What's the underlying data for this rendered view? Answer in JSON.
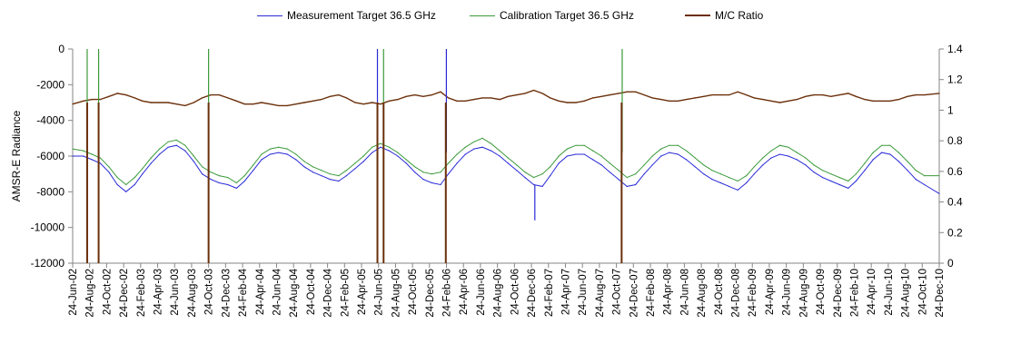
{
  "chart_data": {
    "type": "line",
    "title": "",
    "xlabel": "",
    "ylabel": "AMSR-E Radiance",
    "y2label": "",
    "ylim": [
      -12000,
      0
    ],
    "y2lim": [
      0,
      1.4
    ],
    "yticks": [
      0,
      -2000,
      -4000,
      -6000,
      -8000,
      -10000,
      -12000
    ],
    "y2ticks": [
      1.4,
      1.2,
      1,
      0.8,
      0.6,
      0.4,
      0.2,
      0
    ],
    "xlim": [
      "2002-06-24",
      "2010-12-24"
    ],
    "xtick_labels": [
      "24-Jun-02",
      "24-Aug-02",
      "24-Oct-02",
      "24-Dec-02",
      "24-Feb-03",
      "24-Apr-03",
      "24-Jun-03",
      "24-Aug-03",
      "24-Oct-03",
      "24-Dec-03",
      "24-Feb-04",
      "24-Apr-04",
      "24-Jun-04",
      "24-Aug-04",
      "24-Oct-04",
      "24-Dec-04",
      "24-Feb-05",
      "24-Apr-05",
      "24-Jun-05",
      "24-Aug-05",
      "24-Oct-05",
      "24-Dec-05",
      "24-Feb-06",
      "24-Apr-06",
      "24-Jun-06",
      "24-Aug-06",
      "24-Oct-06",
      "24-Dec-06",
      "24-Feb-07",
      "24-Apr-07",
      "24-Jun-07",
      "24-Aug-07",
      "24-Oct-07",
      "24-Dec-07",
      "24-Feb-08",
      "24-Apr-08",
      "24-Jun-08",
      "24-Aug-08",
      "24-Oct-08",
      "24-Dec-08",
      "24-Feb-09",
      "24-Apr-09",
      "24-Jun-09",
      "24-Aug-09",
      "24-Oct-09",
      "24-Dec-09",
      "24-Feb-10",
      "24-Apr-10",
      "24-Jun-10",
      "24-Aug-10",
      "24-Oct-10",
      "24-Dec-10"
    ],
    "grid": false,
    "legend_position": "top-center",
    "series": [
      {
        "name": "Measurement Target 36.5 GHz",
        "axis": "left",
        "color": "#2a2ad8",
        "x": [
          "2002-06-24",
          "2002-08-01",
          "2002-09-01",
          "2002-10-01",
          "2002-11-01",
          "2002-12-01",
          "2003-01-01",
          "2003-02-01",
          "2003-03-01",
          "2003-04-01",
          "2003-05-01",
          "2003-06-01",
          "2003-07-01",
          "2003-08-01",
          "2003-09-01",
          "2003-10-01",
          "2003-11-01",
          "2003-12-01",
          "2004-01-01",
          "2004-02-01",
          "2004-03-01",
          "2004-04-01",
          "2004-05-01",
          "2004-06-01",
          "2004-07-01",
          "2004-08-01",
          "2004-09-01",
          "2004-10-01",
          "2004-11-01",
          "2004-12-01",
          "2005-01-01",
          "2005-02-01",
          "2005-03-01",
          "2005-04-01",
          "2005-05-01",
          "2005-06-01",
          "2005-07-01",
          "2005-08-01",
          "2005-09-01",
          "2005-10-01",
          "2005-11-01",
          "2005-12-01",
          "2006-01-01",
          "2006-02-01",
          "2006-03-01",
          "2006-04-01",
          "2006-05-01",
          "2006-06-01",
          "2006-07-01",
          "2006-08-01",
          "2006-09-01",
          "2006-10-01",
          "2006-11-01",
          "2006-12-01",
          "2007-01-01",
          "2007-02-01",
          "2007-03-01",
          "2007-04-01",
          "2007-05-01",
          "2007-06-01",
          "2007-07-01",
          "2007-08-01",
          "2007-09-01",
          "2007-10-01",
          "2007-11-01",
          "2007-12-01",
          "2008-01-01",
          "2008-02-01",
          "2008-03-01",
          "2008-04-01",
          "2008-05-01",
          "2008-06-01",
          "2008-07-01",
          "2008-08-01",
          "2008-09-01",
          "2008-10-01",
          "2008-11-01",
          "2008-12-01",
          "2009-01-01",
          "2009-02-01",
          "2009-03-01",
          "2009-04-01",
          "2009-05-01",
          "2009-06-01",
          "2009-07-01",
          "2009-08-01",
          "2009-09-01",
          "2009-10-01",
          "2009-11-01",
          "2009-12-01",
          "2010-01-01",
          "2010-02-01",
          "2010-03-01",
          "2010-04-01",
          "2010-05-01",
          "2010-06-01",
          "2010-07-01",
          "2010-08-01",
          "2010-09-01",
          "2010-10-01",
          "2010-11-01",
          "2010-12-24"
        ],
        "y": [
          -6000,
          -6000,
          -6200,
          -6400,
          -6900,
          -7600,
          -8000,
          -7600,
          -7000,
          -6400,
          -5900,
          -5500,
          -5400,
          -5700,
          -6300,
          -7000,
          -7300,
          -7500,
          -7600,
          -7800,
          -7400,
          -6800,
          -6200,
          -5900,
          -5800,
          -5900,
          -6200,
          -6600,
          -6900,
          -7100,
          -7300,
          -7400,
          -7100,
          -6700,
          -6300,
          -5800,
          -5500,
          -5700,
          -6000,
          -6400,
          -6900,
          -7300,
          -7500,
          -7600,
          -7000,
          -6400,
          -5900,
          -5600,
          -5500,
          -5700,
          -6000,
          -6400,
          -6800,
          -7200,
          -7600,
          -7700,
          -7100,
          -6400,
          -6000,
          -5900,
          -5900,
          -6200,
          -6500,
          -6900,
          -7300,
          -7700,
          -7600,
          -7000,
          -6500,
          -6000,
          -5800,
          -5900,
          -6200,
          -6600,
          -7000,
          -7300,
          -7500,
          -7700,
          -7900,
          -7500,
          -7000,
          -6500,
          -6100,
          -5900,
          -6000,
          -6200,
          -6500,
          -6900,
          -7200,
          -7400,
          -7600,
          -7800,
          -7400,
          -6800,
          -6200,
          -5800,
          -5900,
          -6300,
          -6800,
          -7300,
          -7600,
          -8100
        ]
      },
      {
        "name": "Calibration Target 36.5 GHz",
        "axis": "left",
        "color": "#3a9a3a",
        "x": [
          "2002-06-24",
          "2002-08-01",
          "2002-09-01",
          "2002-10-01",
          "2002-11-01",
          "2002-12-01",
          "2003-01-01",
          "2003-02-01",
          "2003-03-01",
          "2003-04-01",
          "2003-05-01",
          "2003-06-01",
          "2003-07-01",
          "2003-08-01",
          "2003-09-01",
          "2003-10-01",
          "2003-11-01",
          "2003-12-01",
          "2004-01-01",
          "2004-02-01",
          "2004-03-01",
          "2004-04-01",
          "2004-05-01",
          "2004-06-01",
          "2004-07-01",
          "2004-08-01",
          "2004-09-01",
          "2004-10-01",
          "2004-11-01",
          "2004-12-01",
          "2005-01-01",
          "2005-02-01",
          "2005-03-01",
          "2005-04-01",
          "2005-05-01",
          "2005-06-01",
          "2005-07-01",
          "2005-08-01",
          "2005-09-01",
          "2005-10-01",
          "2005-11-01",
          "2005-12-01",
          "2006-01-01",
          "2006-02-01",
          "2006-03-01",
          "2006-04-01",
          "2006-05-01",
          "2006-06-01",
          "2006-07-01",
          "2006-08-01",
          "2006-09-01",
          "2006-10-01",
          "2006-11-01",
          "2006-12-01",
          "2007-01-01",
          "2007-02-01",
          "2007-03-01",
          "2007-04-01",
          "2007-05-01",
          "2007-06-01",
          "2007-07-01",
          "2007-08-01",
          "2007-09-01",
          "2007-10-01",
          "2007-11-01",
          "2007-12-01",
          "2008-01-01",
          "2008-02-01",
          "2008-03-01",
          "2008-04-01",
          "2008-05-01",
          "2008-06-01",
          "2008-07-01",
          "2008-08-01",
          "2008-09-01",
          "2008-10-01",
          "2008-11-01",
          "2008-12-01",
          "2009-01-01",
          "2009-02-01",
          "2009-03-01",
          "2009-04-01",
          "2009-05-01",
          "2009-06-01",
          "2009-07-01",
          "2009-08-01",
          "2009-09-01",
          "2009-10-01",
          "2009-11-01",
          "2009-12-01",
          "2010-01-01",
          "2010-02-01",
          "2010-03-01",
          "2010-04-01",
          "2010-05-01",
          "2010-06-01",
          "2010-07-01",
          "2010-08-01",
          "2010-09-01",
          "2010-10-01",
          "2010-11-01",
          "2010-12-24"
        ],
        "y": [
          -5600,
          -5700,
          -5900,
          -6100,
          -6600,
          -7200,
          -7600,
          -7200,
          -6700,
          -6100,
          -5600,
          -5200,
          -5100,
          -5400,
          -6000,
          -6600,
          -6900,
          -7100,
          -7200,
          -7500,
          -7100,
          -6500,
          -5900,
          -5600,
          -5500,
          -5600,
          -5900,
          -6300,
          -6600,
          -6800,
          -7000,
          -7100,
          -6800,
          -6400,
          -6000,
          -5500,
          -5300,
          -5500,
          -5800,
          -6200,
          -6600,
          -6900,
          -7000,
          -6900,
          -6400,
          -5900,
          -5500,
          -5200,
          -5000,
          -5300,
          -5700,
          -6100,
          -6500,
          -6900,
          -7200,
          -7000,
          -6600,
          -6000,
          -5600,
          -5400,
          -5400,
          -5700,
          -6000,
          -6400,
          -6800,
          -7200,
          -7000,
          -6500,
          -6000,
          -5600,
          -5400,
          -5400,
          -5700,
          -6100,
          -6500,
          -6800,
          -7000,
          -7200,
          -7400,
          -7100,
          -6600,
          -6100,
          -5700,
          -5400,
          -5500,
          -5800,
          -6100,
          -6500,
          -6800,
          -7000,
          -7200,
          -7400,
          -7000,
          -6400,
          -5800,
          -5400,
          -5400,
          -5800,
          -6300,
          -6800,
          -7100,
          -7100
        ]
      },
      {
        "name": "M/C Ratio",
        "axis": "right",
        "color": "#6b2f0a",
        "x": [
          "2002-06-24",
          "2002-08-01",
          "2002-09-01",
          "2002-10-01",
          "2002-11-01",
          "2002-12-01",
          "2003-01-01",
          "2003-02-01",
          "2003-03-01",
          "2003-04-01",
          "2003-05-01",
          "2003-06-01",
          "2003-07-01",
          "2003-08-01",
          "2003-09-01",
          "2003-10-01",
          "2003-11-01",
          "2003-12-01",
          "2004-01-01",
          "2004-02-01",
          "2004-03-01",
          "2004-04-01",
          "2004-05-01",
          "2004-06-01",
          "2004-07-01",
          "2004-08-01",
          "2004-09-01",
          "2004-10-01",
          "2004-11-01",
          "2004-12-01",
          "2005-01-01",
          "2005-02-01",
          "2005-03-01",
          "2005-04-01",
          "2005-05-01",
          "2005-06-01",
          "2005-07-01",
          "2005-08-01",
          "2005-09-01",
          "2005-10-01",
          "2005-11-01",
          "2005-12-01",
          "2006-01-01",
          "2006-02-01",
          "2006-03-01",
          "2006-04-01",
          "2006-05-01",
          "2006-06-01",
          "2006-07-01",
          "2006-08-01",
          "2006-09-01",
          "2006-10-01",
          "2006-11-01",
          "2006-12-01",
          "2007-01-01",
          "2007-02-01",
          "2007-03-01",
          "2007-04-01",
          "2007-05-01",
          "2007-06-01",
          "2007-07-01",
          "2007-08-01",
          "2007-09-01",
          "2007-10-01",
          "2007-11-01",
          "2007-12-01",
          "2008-01-01",
          "2008-02-01",
          "2008-03-01",
          "2008-04-01",
          "2008-05-01",
          "2008-06-01",
          "2008-07-01",
          "2008-08-01",
          "2008-09-01",
          "2008-10-01",
          "2008-11-01",
          "2008-12-01",
          "2009-01-01",
          "2009-02-01",
          "2009-03-01",
          "2009-04-01",
          "2009-05-01",
          "2009-06-01",
          "2009-07-01",
          "2009-08-01",
          "2009-09-01",
          "2009-10-01",
          "2009-11-01",
          "2009-12-01",
          "2010-01-01",
          "2010-02-01",
          "2010-03-01",
          "2010-04-01",
          "2010-05-01",
          "2010-06-01",
          "2010-07-01",
          "2010-08-01",
          "2010-09-01",
          "2010-10-01",
          "2010-11-01",
          "2010-12-24"
        ],
        "y": [
          1.04,
          1.06,
          1.07,
          1.07,
          1.09,
          1.11,
          1.1,
          1.08,
          1.06,
          1.05,
          1.05,
          1.05,
          1.04,
          1.03,
          1.05,
          1.08,
          1.1,
          1.1,
          1.08,
          1.06,
          1.04,
          1.04,
          1.05,
          1.04,
          1.03,
          1.03,
          1.04,
          1.05,
          1.06,
          1.07,
          1.09,
          1.1,
          1.08,
          1.05,
          1.04,
          1.05,
          1.04,
          1.06,
          1.07,
          1.09,
          1.1,
          1.09,
          1.1,
          1.12,
          1.08,
          1.06,
          1.06,
          1.07,
          1.08,
          1.08,
          1.07,
          1.09,
          1.1,
          1.11,
          1.13,
          1.11,
          1.08,
          1.06,
          1.05,
          1.05,
          1.06,
          1.08,
          1.09,
          1.1,
          1.11,
          1.12,
          1.12,
          1.1,
          1.08,
          1.07,
          1.06,
          1.06,
          1.07,
          1.08,
          1.09,
          1.1,
          1.1,
          1.1,
          1.12,
          1.1,
          1.08,
          1.07,
          1.06,
          1.05,
          1.06,
          1.07,
          1.09,
          1.1,
          1.1,
          1.09,
          1.1,
          1.11,
          1.09,
          1.07,
          1.06,
          1.06,
          1.06,
          1.07,
          1.09,
          1.1,
          1.1,
          1.11
        ],
        "dropouts": [
          "2002-08-15",
          "2002-09-25",
          "2003-10-24",
          "2005-06-20",
          "2005-07-12",
          "2006-02-20",
          "2007-11-12"
        ]
      }
    ],
    "spikes_left_axis": [
      {
        "series": "Calibration Target 36.5 GHz",
        "x": "2002-08-15",
        "y": 0
      },
      {
        "series": "Calibration Target 36.5 GHz",
        "x": "2002-09-25",
        "y": 0
      },
      {
        "series": "Calibration Target 36.5 GHz",
        "x": "2003-10-24",
        "y": 0
      },
      {
        "series": "Measurement Target 36.5 GHz",
        "x": "2005-06-20",
        "y": 0
      },
      {
        "series": "Calibration Target 36.5 GHz",
        "x": "2005-07-12",
        "y": 0
      },
      {
        "series": "Measurement Target 36.5 GHz",
        "x": "2006-02-22",
        "y": 0
      },
      {
        "series": "Measurement Target 36.5 GHz",
        "x": "2007-01-05",
        "y": -9600
      },
      {
        "series": "Calibration Target 36.5 GHz",
        "x": "2007-11-14",
        "y": 0
      }
    ]
  }
}
